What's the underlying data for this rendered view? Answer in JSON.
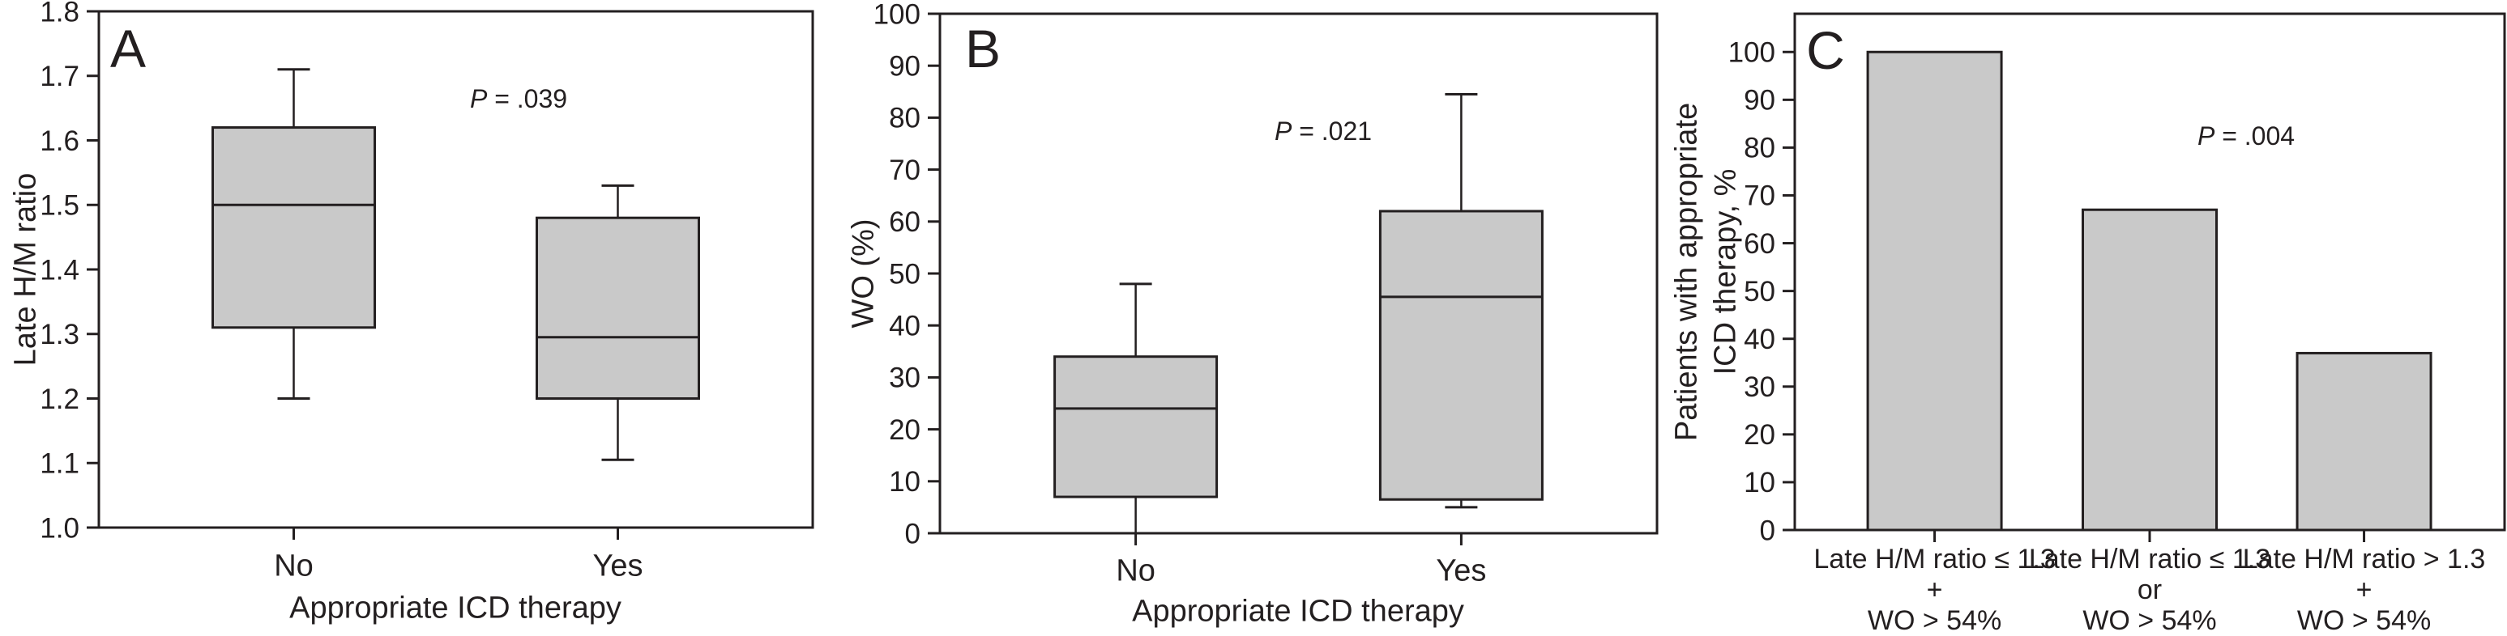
{
  "figure": {
    "background": "#ffffff",
    "box_fill": "#c9c9c9",
    "line_color": "#231f20",
    "description": "Three-panel statistical figure: two box plots (A, B) and one bar chart (C)"
  },
  "chart_data": [
    {
      "panel_letter": "A",
      "type": "box",
      "title": "",
      "ylabel": "Late H/M ratio",
      "ylabel_lines": [
        "Late H/M ratio"
      ],
      "xlabel": "Appropriate ICD therapy",
      "annotation": {
        "italic": "P",
        "text": " = .039"
      },
      "ylim": [
        1.0,
        1.8
      ],
      "yticks": [
        1.0,
        1.1,
        1.2,
        1.3,
        1.4,
        1.5,
        1.6,
        1.7,
        1.8
      ],
      "ytick_labels": [
        "1.0",
        "1.1",
        "1.2",
        "1.3",
        "1.4",
        "1.5",
        "1.6",
        "1.7",
        "1.8"
      ],
      "categories": [
        "No",
        "Yes"
      ],
      "grid": false,
      "legend": null,
      "series": [
        {
          "name": "No",
          "whisker_low": 1.2,
          "q1": 1.31,
          "median": 1.5,
          "q3": 1.62,
          "whisker_high": 1.71
        },
        {
          "name": "Yes",
          "whisker_low": 1.105,
          "q1": 1.2,
          "median": 1.295,
          "q3": 1.48,
          "whisker_high": 1.53
        }
      ]
    },
    {
      "panel_letter": "B",
      "type": "box",
      "title": "",
      "ylabel": "WO (%)",
      "ylabel_lines": [
        "WO (%)"
      ],
      "xlabel": "Appropriate ICD therapy",
      "annotation": {
        "italic": "P",
        "text": " = .021"
      },
      "ylim": [
        0,
        100
      ],
      "yticks": [
        0,
        10,
        20,
        30,
        40,
        50,
        60,
        70,
        80,
        90,
        100
      ],
      "ytick_labels": [
        "0",
        "10",
        "20",
        "30",
        "40",
        "50",
        "60",
        "70",
        "80",
        "90",
        "100"
      ],
      "categories": [
        "No",
        "Yes"
      ],
      "grid": false,
      "legend": null,
      "series": [
        {
          "name": "No",
          "whisker_low": 0,
          "q1": 7,
          "median": 24,
          "q3": 34,
          "whisker_high": 48
        },
        {
          "name": "Yes",
          "whisker_low": 5,
          "q1": 6.5,
          "median": 45.5,
          "q3": 62,
          "whisker_high": 84.5
        }
      ]
    },
    {
      "panel_letter": "C",
      "type": "bar",
      "title": "",
      "ylabel": "Patients with appropriate ICD therapy, %",
      "ylabel_lines": [
        "Patients with appropriate",
        "ICD therapy, %"
      ],
      "xlabel": "",
      "annotation": {
        "italic": "P",
        "text": " = .004"
      },
      "ylim": [
        0,
        108
      ],
      "yticks": [
        0,
        10,
        20,
        30,
        40,
        50,
        60,
        70,
        80,
        90,
        100
      ],
      "ytick_labels": [
        "0",
        "10",
        "20",
        "30",
        "40",
        "50",
        "60",
        "70",
        "80",
        "90",
        "100"
      ],
      "categories": [
        "Late H/M ratio ≤ 1.3 + WO > 54%",
        "Late H/M ratio ≤ 1.3 or WO > 54%",
        "Late H/M ratio > 1.3 + WO > 54%"
      ],
      "categories_lines": [
        [
          "Late H/M ratio ≤ 1.3",
          "+",
          "WO > 54%"
        ],
        [
          "Late H/M ratio ≤ 1.3",
          "or",
          "WO > 54%"
        ],
        [
          "Late H/M ratio > 1.3",
          "+",
          "WO > 54%"
        ]
      ],
      "values": [
        100,
        67,
        37
      ],
      "grid": false,
      "legend": null
    }
  ]
}
